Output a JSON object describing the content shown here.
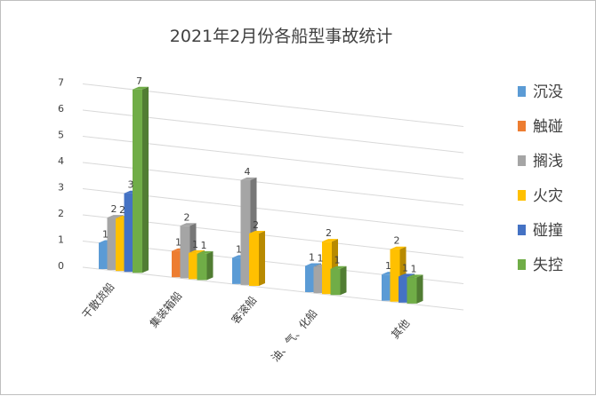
{
  "chart_data": {
    "type": "bar",
    "title": "2021年2月份各船型事故统计",
    "categories": [
      "干散货船",
      "集装箱船",
      "客滚船",
      "油、气、化船",
      "其他"
    ],
    "series": [
      {
        "name": "沉没",
        "color": "#5b9bd5",
        "values": [
          1,
          null,
          1,
          1,
          1
        ]
      },
      {
        "name": "触碰",
        "color": "#ed7d31",
        "values": [
          null,
          1,
          null,
          null,
          null
        ]
      },
      {
        "name": "搁浅",
        "color": "#a5a5a5",
        "values": [
          2,
          2,
          4,
          1,
          null
        ]
      },
      {
        "name": "火灾",
        "color": "#ffc000",
        "values": [
          2,
          1,
          2,
          2,
          2
        ]
      },
      {
        "name": "碰撞",
        "color": "#4472c4",
        "values": [
          3,
          null,
          null,
          null,
          1
        ]
      },
      {
        "name": "失控",
        "color": "#70ad47",
        "values": [
          7,
          1,
          null,
          1,
          1
        ]
      }
    ],
    "ylim": [
      0,
      7
    ],
    "yticks": [
      "0",
      "1",
      "2",
      "3",
      "4",
      "5",
      "6",
      "7"
    ],
    "legend_position": "right",
    "grid": true
  }
}
